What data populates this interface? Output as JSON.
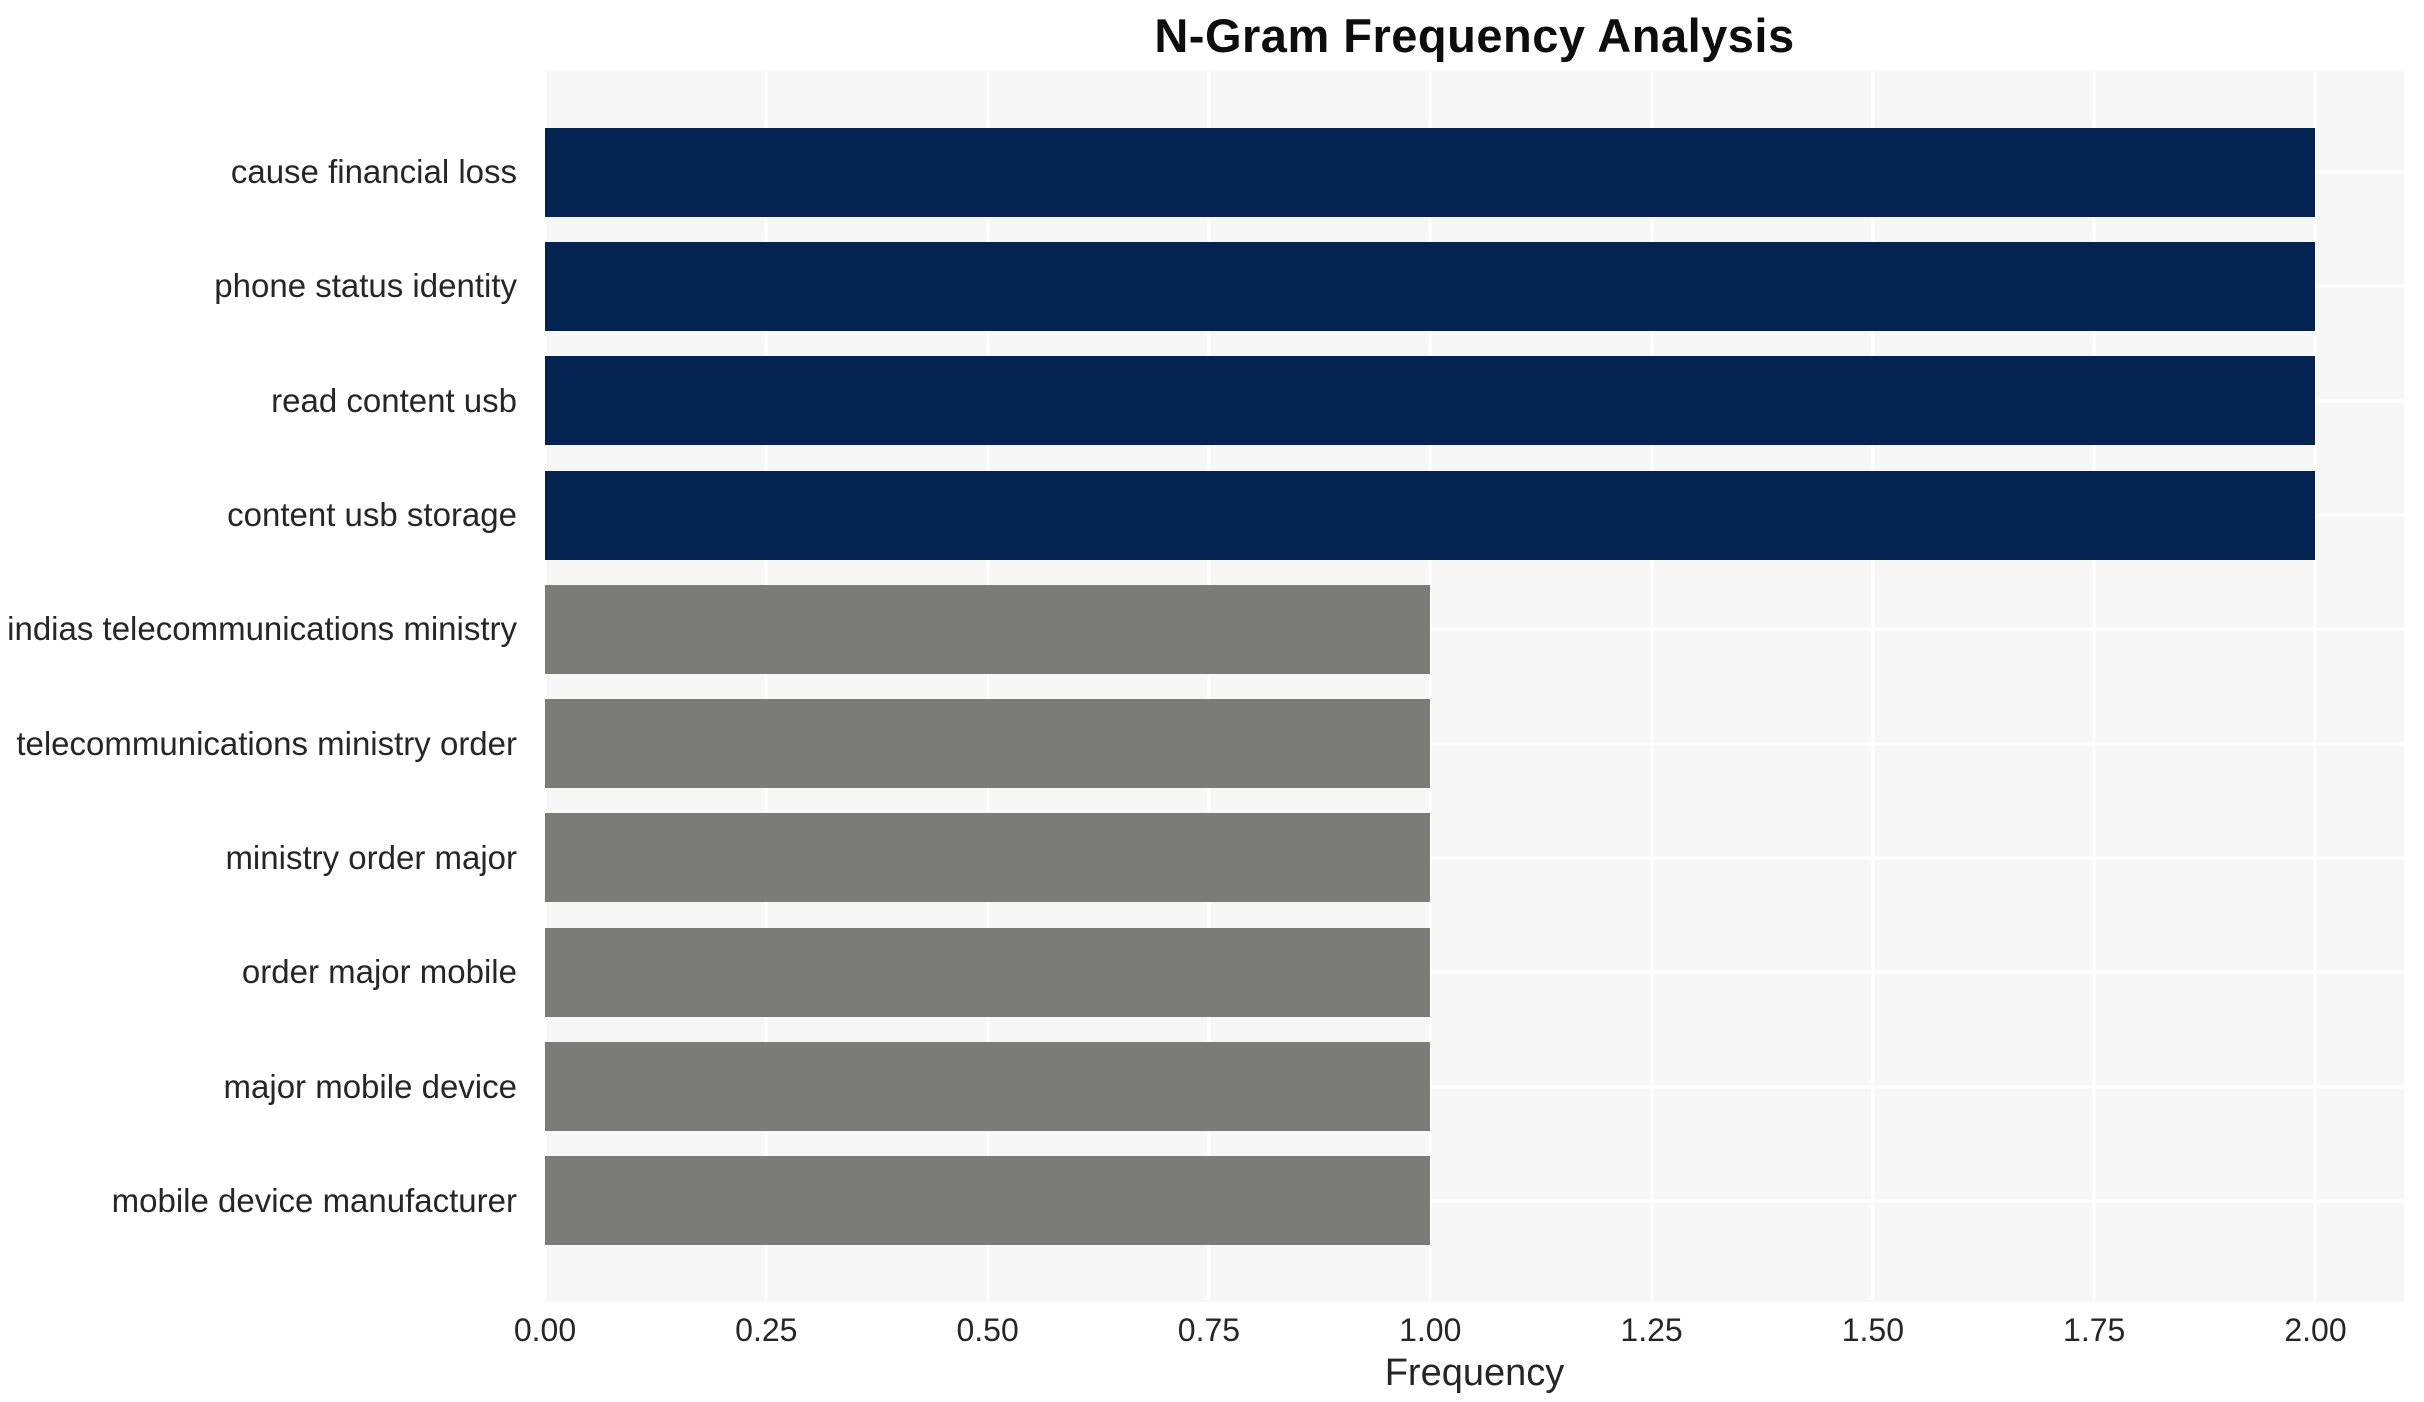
{
  "chart_data": {
    "type": "bar",
    "orientation": "horizontal",
    "title": "N-Gram Frequency Analysis",
    "xlabel": "Frequency",
    "ylabel": "",
    "categories": [
      "cause financial loss",
      "phone status identity",
      "read content usb",
      "content usb storage",
      "indias telecommunications ministry",
      "telecommunications ministry order",
      "ministry order major",
      "order major mobile",
      "major mobile device",
      "mobile device manufacturer"
    ],
    "values": [
      2,
      2,
      2,
      2,
      1,
      1,
      1,
      1,
      1,
      1
    ],
    "bar_colors": [
      "#042350",
      "#042350",
      "#042350",
      "#042350",
      "#7b7b77",
      "#7b7b77",
      "#7b7b77",
      "#7b7b77",
      "#7b7b77",
      "#7b7b77"
    ],
    "x_tick_labels": [
      "0.00",
      "0.25",
      "0.50",
      "0.75",
      "1.00",
      "1.25",
      "1.50",
      "1.75",
      "2.00"
    ],
    "x_tick_values": [
      0,
      0.25,
      0.5,
      0.75,
      1,
      1.25,
      1.5,
      1.75,
      2
    ],
    "xlim": [
      0,
      2.1
    ],
    "grid": true,
    "legend": false,
    "colors": {
      "highlight_bar": "#042350",
      "muted_bar": "#7b7b77",
      "plot_background": "#f7f7f7",
      "gridline": "#ffffff",
      "text": "#262626",
      "title_text": "#0d0d0d",
      "figure_background": "#ffffff"
    }
  }
}
